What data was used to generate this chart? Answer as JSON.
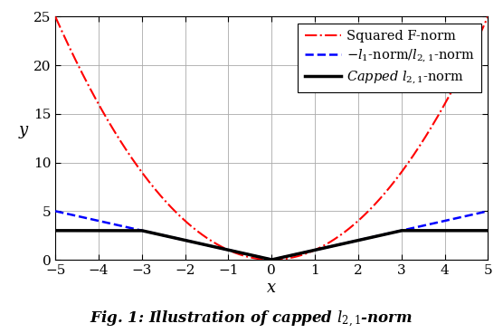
{
  "xlim": [
    -5,
    5
  ],
  "ylim": [
    0,
    25
  ],
  "xlabel": "x",
  "ylabel": "y",
  "xticks": [
    -5,
    -4,
    -3,
    -2,
    -1,
    0,
    1,
    2,
    3,
    4,
    5
  ],
  "yticks": [
    0,
    5,
    10,
    15,
    20,
    25
  ],
  "cap_theta": 3.0,
  "squared_fnorm_color": "#FF0000",
  "l1_color": "#0000FF",
  "capped_color": "#000000",
  "squared_linestyle": "-.",
  "l1_linestyle": "--",
  "capped_linestyle": "-",
  "squared_linewidth": 1.5,
  "l1_linewidth": 1.8,
  "capped_linewidth": 2.5,
  "background_color": "#FFFFFF",
  "grid_color": "#AAAAAA",
  "xlabel_fontsize": 13,
  "ylabel_fontsize": 13,
  "legend_fontsize": 10.5,
  "tick_fontsize": 11,
  "caption_text": "Fig. 1: Illustration of capped $l_{2,1}$-norm",
  "caption_fontsize": 12
}
